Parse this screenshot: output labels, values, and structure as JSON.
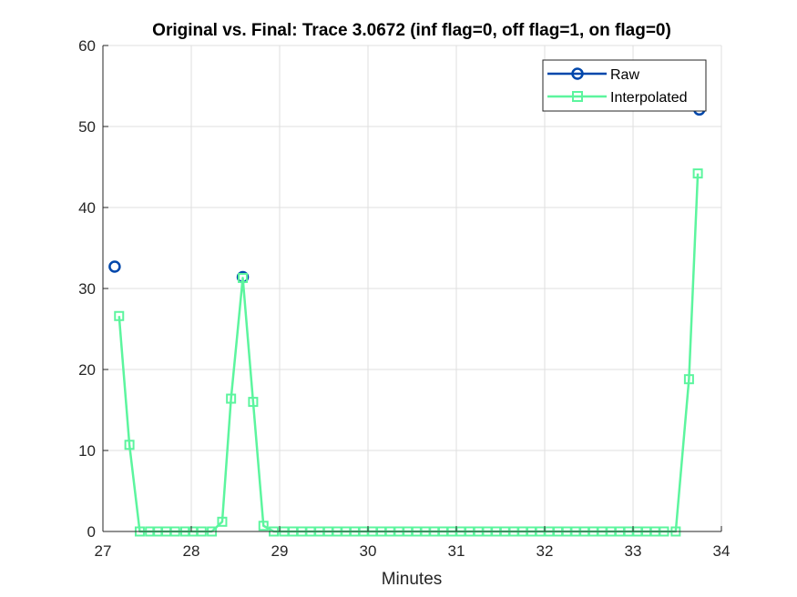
{
  "chart_data": {
    "type": "line",
    "title": "Original vs. Final: Trace 3.0672 (inf flag=0, off flag=1, on flag=0)",
    "xlabel": "Minutes",
    "ylabel": "",
    "xlim": [
      27,
      34
    ],
    "ylim": [
      0,
      60
    ],
    "xticks": [
      27,
      28,
      29,
      30,
      31,
      32,
      33,
      34
    ],
    "yticks": [
      0,
      10,
      20,
      30,
      40,
      50,
      60
    ],
    "grid": true,
    "legend_position": "top-right",
    "series": [
      {
        "name": "Raw",
        "marker": "circle",
        "line": false,
        "color": "#0047AB",
        "x": [
          27.133,
          28.583,
          33.75
        ],
        "y": [
          32.7,
          31.4,
          52.1
        ]
      },
      {
        "name": "Interpolated",
        "marker": "square",
        "line": true,
        "color": "#5CF59E",
        "x": [
          27.183,
          27.3,
          27.417,
          27.533,
          27.617,
          27.717,
          27.817,
          27.933,
          28.017,
          28.117,
          28.233,
          28.35,
          28.45,
          28.583,
          28.7,
          28.817,
          28.933,
          29.05,
          29.15,
          29.25,
          29.35,
          29.45,
          29.55,
          29.65,
          29.75,
          29.85,
          29.95,
          30.05,
          30.15,
          30.25,
          30.35,
          30.45,
          30.55,
          30.65,
          30.75,
          30.85,
          30.95,
          31.05,
          31.15,
          31.25,
          31.35,
          31.45,
          31.55,
          31.65,
          31.75,
          31.85,
          31.95,
          32.05,
          32.15,
          32.25,
          32.35,
          32.45,
          32.55,
          32.65,
          32.75,
          32.85,
          32.95,
          33.05,
          33.15,
          33.25,
          33.35,
          33.483,
          33.633,
          33.733
        ],
        "y": [
          26.6,
          10.7,
          0,
          0,
          0,
          0,
          0,
          0,
          0,
          0,
          0,
          1.2,
          16.4,
          31.3,
          16.0,
          0.7,
          0,
          0,
          0,
          0,
          0,
          0,
          0,
          0,
          0,
          0,
          0,
          0,
          0,
          0,
          0,
          0,
          0,
          0,
          0,
          0,
          0,
          0,
          0,
          0,
          0,
          0,
          0,
          0,
          0,
          0,
          0,
          0,
          0,
          0,
          0,
          0,
          0,
          0,
          0,
          0,
          0,
          0,
          0,
          0,
          0,
          0,
          18.8,
          44.2
        ]
      }
    ]
  }
}
